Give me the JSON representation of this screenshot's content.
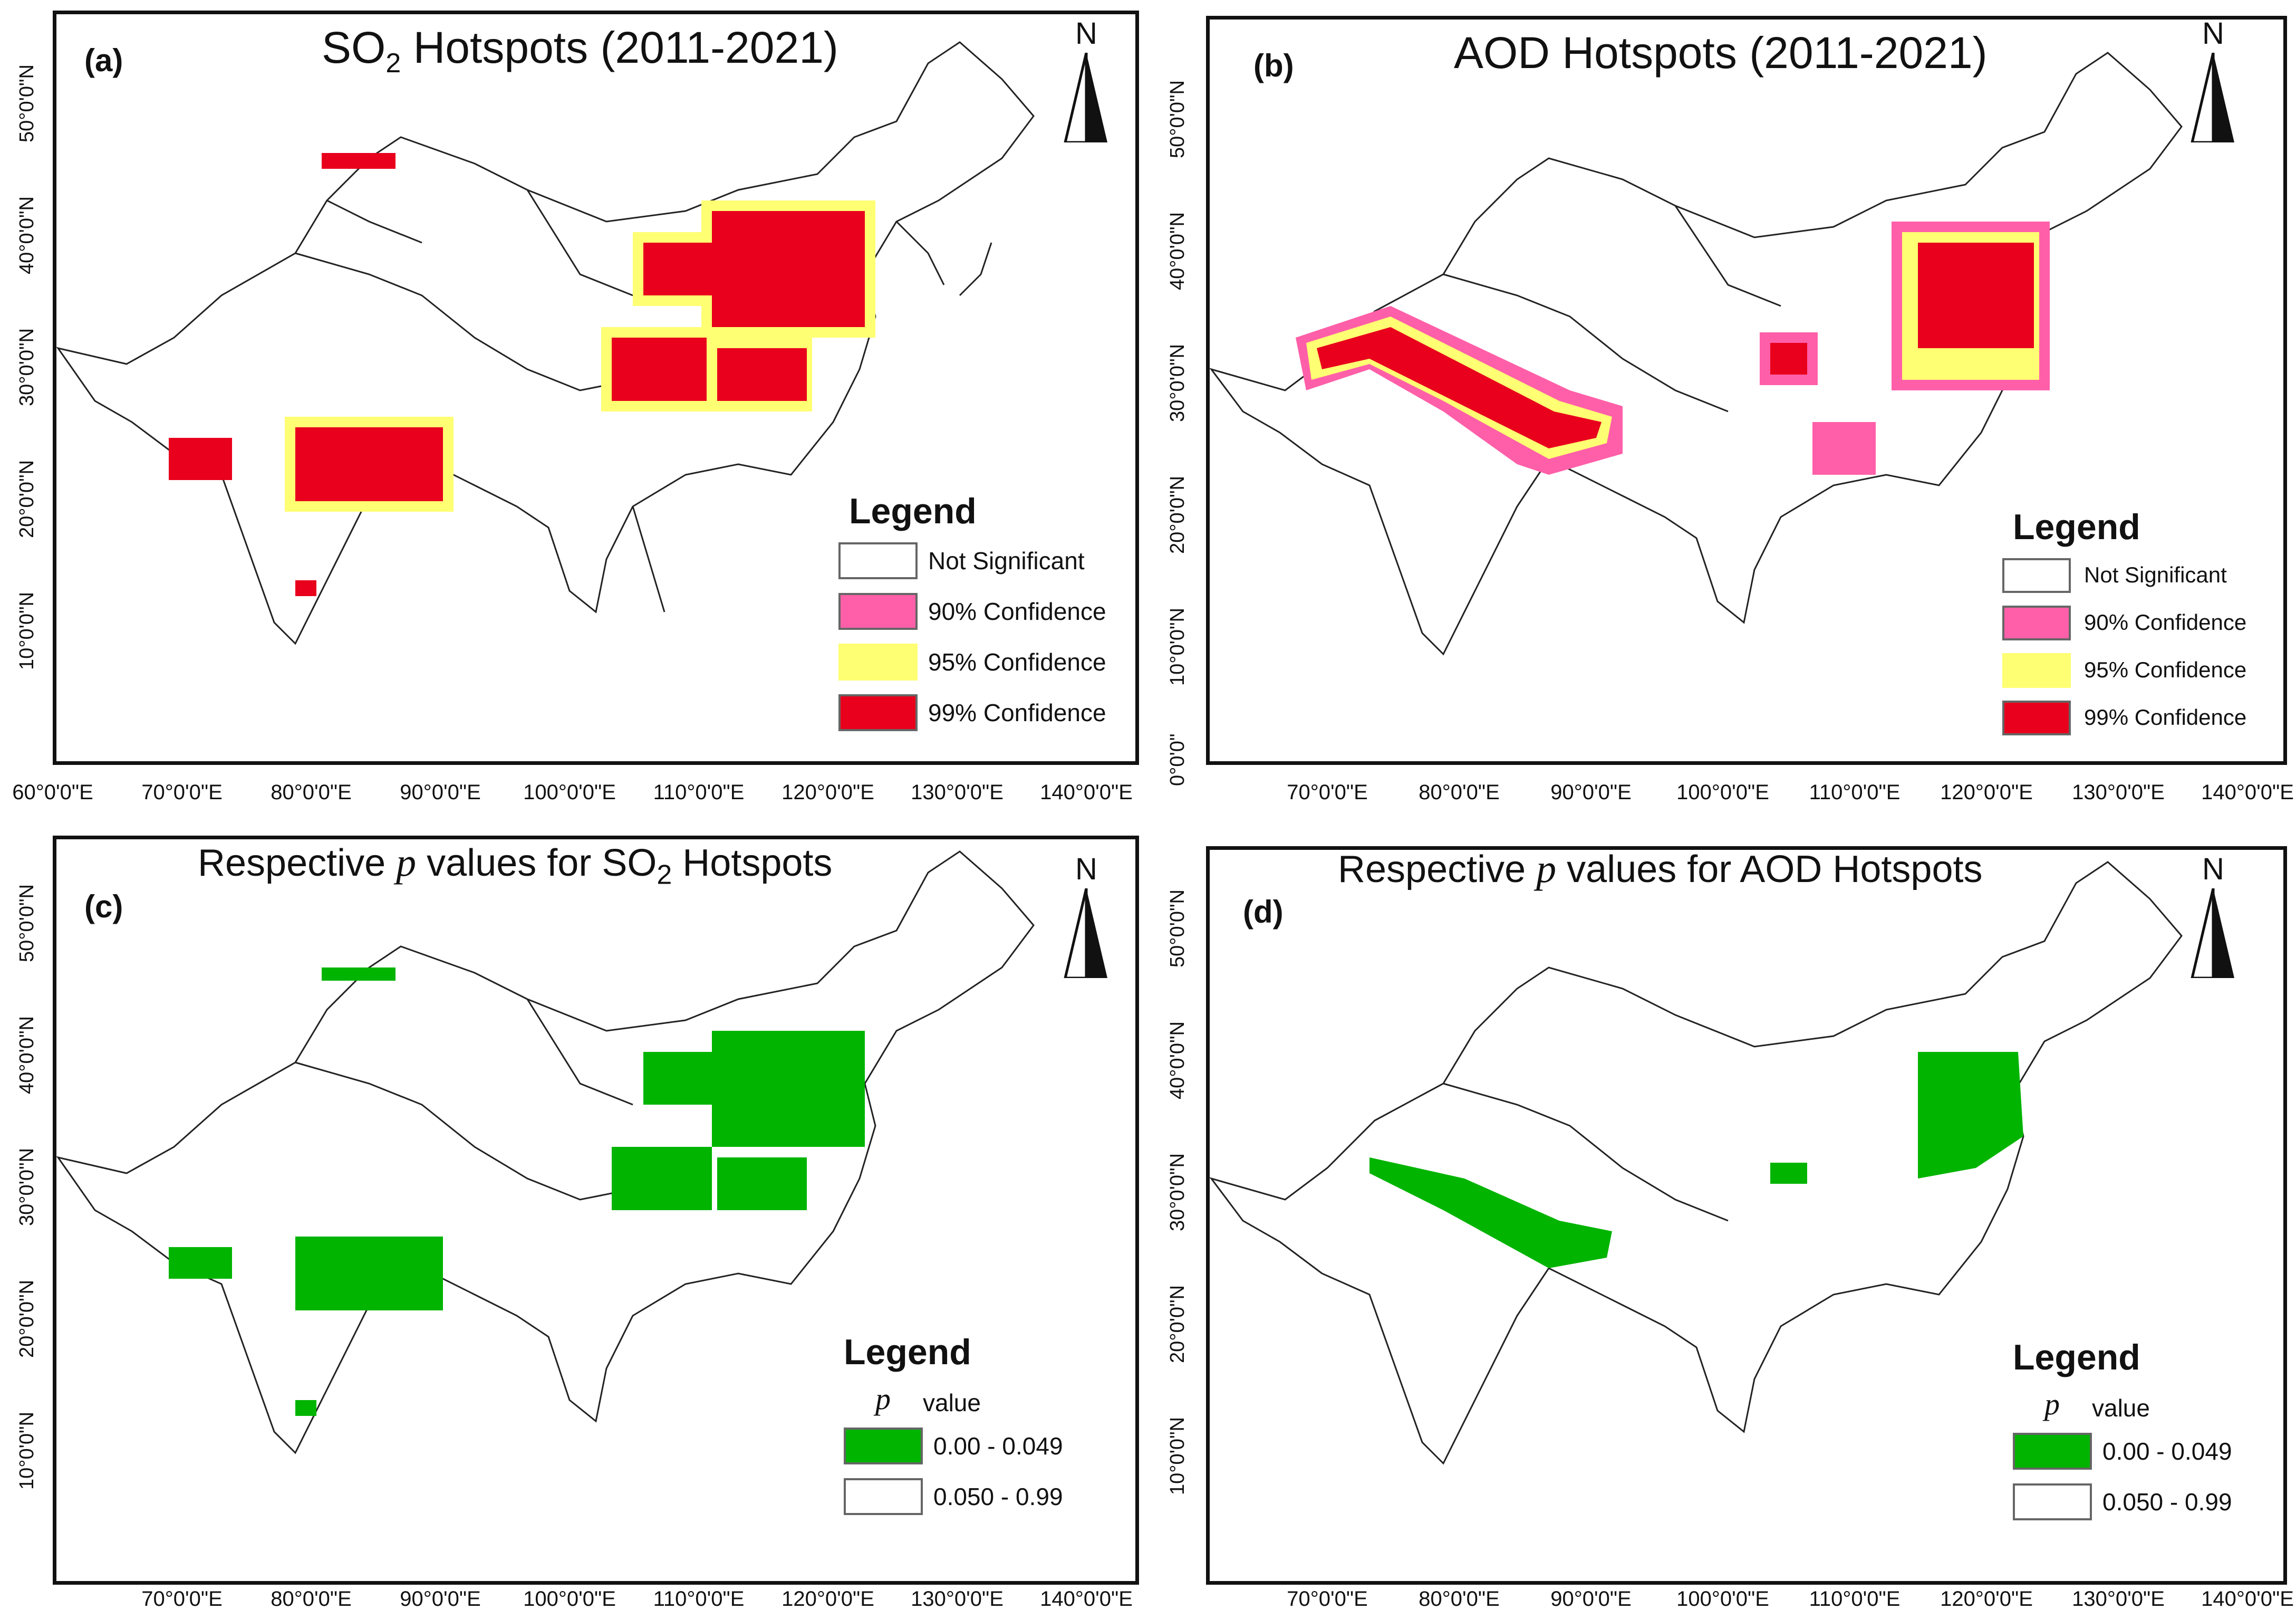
{
  "panels": [
    {
      "label": "(a)",
      "title": "SO",
      "title_sub": "2",
      "title_rest": " Hotspots (2011-2021)",
      "legend_title": "Legend",
      "legend_items": [
        {
          "label": "Not Significant",
          "color": "#ffffff"
        },
        {
          "label": "90% Confidence",
          "color": "#ff5fa8"
        },
        {
          "label": "95% Confidence",
          "color": "#ffff73"
        },
        {
          "label": "99% Confidence",
          "color": "#e8001c"
        }
      ],
      "x_ticks": [
        "60°0'0\"E",
        "70°0'0\"E",
        "80°0'0\"E",
        "90°0'0\"E",
        "100°0'0\"E",
        "110°0'0\"E",
        "120°0'0\"E",
        "130°0'0\"E",
        "140°0'0\"E"
      ],
      "y_ticks": [
        "10°0'0\"N",
        "20°0'0\"N",
        "30°0'0\"N",
        "40°0'0\"N",
        "50°0'0\"N"
      ]
    },
    {
      "label": "(b)",
      "title": "AOD Hotspots (2011-2021)",
      "legend_title": "Legend",
      "legend_items": [
        {
          "label": "Not Significant",
          "color": "#ffffff"
        },
        {
          "label": "90% Confidence",
          "color": "#ff5fa8"
        },
        {
          "label": "95% Confidence",
          "color": "#ffff73"
        },
        {
          "label": "99% Confidence",
          "color": "#e8001c"
        }
      ],
      "x_ticks": [
        "70°0'0\"E",
        "80°0'0\"E",
        "90°0'0\"E",
        "100°0'0\"E",
        "110°0'0\"E",
        "120°0'0\"E",
        "130°0'0\"E",
        "140°0'0\"E"
      ],
      "y_ticks": [
        "0°0'0\"",
        "10°0'0\"N",
        "20°0'0\"N",
        "30°0'0\"N",
        "40°0'0\"N",
        "50°0'0\"N"
      ]
    },
    {
      "label": "(c)",
      "title_pre": "Respective ",
      "title_p": "p",
      "title_mid": " values for SO",
      "title_sub": "2",
      "title_rest": " Hotspots",
      "legend_title": "Legend",
      "legend_p": "p",
      "legend_value": "value",
      "legend_items": [
        {
          "label": "0.00 - 0.049",
          "color": "#00b400"
        },
        {
          "label": "0.050 - 0.99",
          "color": "#ffffff"
        }
      ],
      "x_ticks": [
        "70°0'0\"E",
        "80°0'0\"E",
        "90°0'0\"E",
        "100°0'0\"E",
        "110°0'0\"E",
        "120°0'0\"E",
        "130°0'0\"E",
        "140°0'0\"E"
      ],
      "y_ticks": [
        "10°0'0\"N",
        "20°0'0\"N",
        "30°0'0\"N",
        "40°0'0\"N",
        "50°0'0\"N"
      ]
    },
    {
      "label": "(d)",
      "title_pre": "Respective ",
      "title_p": "p",
      "title_rest": " values for AOD Hotspots",
      "legend_title": "Legend",
      "legend_p": "p",
      "legend_value": "value",
      "legend_items": [
        {
          "label": "0.00 - 0.049",
          "color": "#00b400"
        },
        {
          "label": "0.050 - 0.99",
          "color": "#ffffff"
        }
      ],
      "x_ticks": [
        "70°0'0\"E",
        "80°0'0\"E",
        "90°0'0\"E",
        "100°0'0\"E",
        "110°0'0\"E",
        "120°0'0\"E",
        "130°0'0\"E",
        "140°0'0\"E"
      ],
      "y_ticks": [
        "10°0'0\"N",
        "20°0'0\"N",
        "30°0'0\"N",
        "40°0'0\"N",
        "50°0'0\"N"
      ]
    }
  ],
  "north_label": "N"
}
